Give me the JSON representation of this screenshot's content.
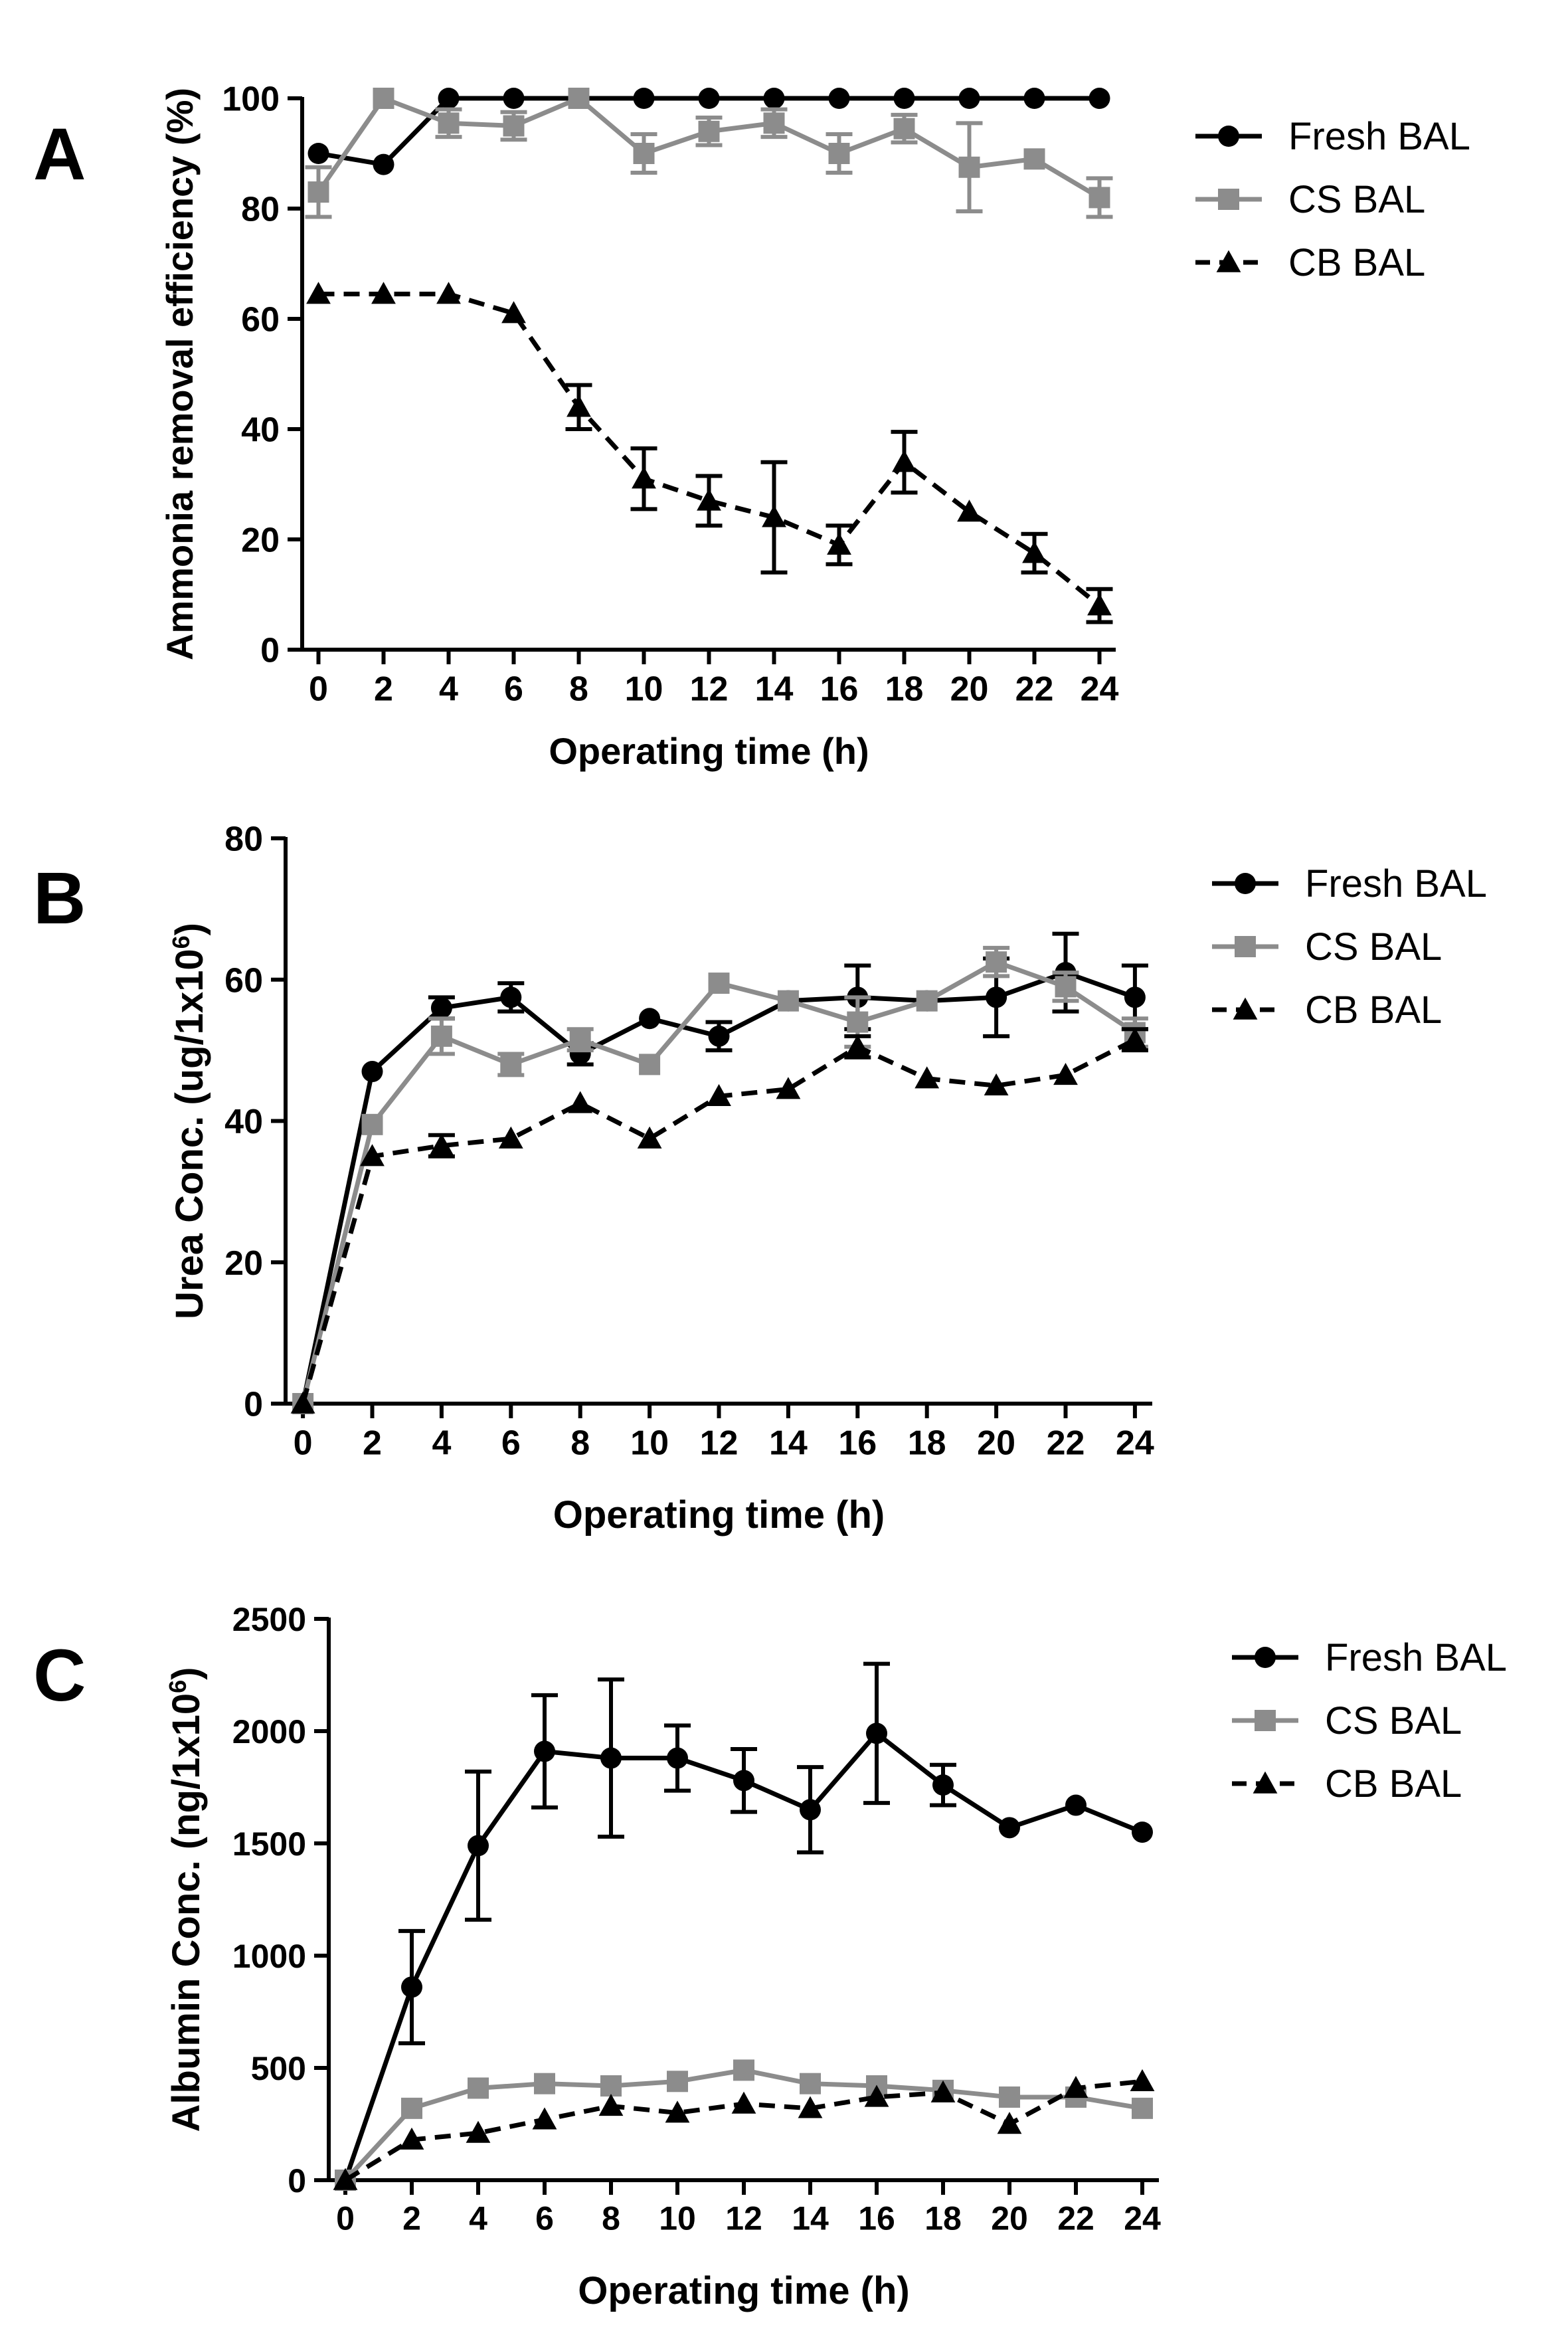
{
  "styles": {
    "Fresh BAL": {
      "color": "#000000",
      "marker": "circle",
      "dash": ""
    },
    "CS BAL": {
      "color": "#8c8c8c",
      "marker": "square",
      "dash": ""
    },
    "CB BAL": {
      "color": "#000000",
      "marker": "triangle",
      "dash": "24,14"
    }
  },
  "chart_data": [
    {
      "type": "line",
      "panel_label": "A",
      "xlabel": "Operating time (h)",
      "ylabel": "Ammonia removal efficiency (%)",
      "ylabel_sup": "",
      "ylabel_suffix": "",
      "x": [
        0,
        2,
        4,
        6,
        8,
        10,
        12,
        14,
        16,
        18,
        20,
        22,
        24
      ],
      "xlim": [
        -0.5,
        24.5
      ],
      "ylim": [
        0,
        100
      ],
      "yticks": [
        0,
        20,
        40,
        60,
        80,
        100
      ],
      "xticks": [
        0,
        2,
        4,
        6,
        8,
        10,
        12,
        14,
        16,
        18,
        20,
        22,
        24
      ],
      "legend_position": "right",
      "series": [
        {
          "name": "Fresh BAL",
          "values": [
            90,
            88,
            100,
            100,
            100,
            100,
            100,
            100,
            100,
            100,
            100,
            100,
            100
          ],
          "errors": [
            0,
            0,
            0,
            0,
            0,
            0,
            0,
            0,
            0,
            0,
            0,
            0,
            0
          ]
        },
        {
          "name": "CS BAL",
          "values": [
            83,
            100,
            95.5,
            95,
            100,
            90,
            94,
            95.5,
            90,
            94.5,
            87.5,
            89,
            82
          ],
          "errors": [
            4.5,
            0,
            2.5,
            2.5,
            0,
            3.5,
            2.5,
            2.5,
            3.5,
            2.5,
            8,
            0,
            3.5
          ]
        },
        {
          "name": "CB BAL",
          "values": [
            64.5,
            64.5,
            64.5,
            61,
            44,
            31,
            27,
            24,
            19,
            34,
            25,
            17.5,
            8
          ],
          "errors": [
            0,
            0,
            0,
            0,
            4,
            5.5,
            4.5,
            10,
            3.5,
            5.5,
            0,
            3.5,
            3
          ]
        }
      ]
    },
    {
      "type": "line",
      "panel_label": "B",
      "xlabel": "Operating time (h)",
      "ylabel": "Urea Conc. (ug/1x10",
      "ylabel_sup": "6",
      "ylabel_suffix": ")",
      "x": [
        0,
        2,
        4,
        6,
        8,
        10,
        12,
        14,
        16,
        18,
        20,
        22,
        24
      ],
      "xlim": [
        -0.5,
        24.5
      ],
      "ylim": [
        0,
        80
      ],
      "yticks": [
        0,
        20,
        40,
        60,
        80
      ],
      "xticks": [
        0,
        2,
        4,
        6,
        8,
        10,
        12,
        14,
        16,
        18,
        20,
        22,
        24
      ],
      "legend_position": "right",
      "series": [
        {
          "name": "Fresh BAL",
          "values": [
            0,
            47,
            56,
            57.5,
            49.5,
            54.5,
            52,
            57,
            57.5,
            57,
            57.5,
            61,
            57.5
          ],
          "errors": [
            0,
            0,
            1.5,
            2,
            1.5,
            0,
            2,
            0,
            4.5,
            0,
            5.5,
            5.5,
            4.5
          ]
        },
        {
          "name": "CS BAL",
          "values": [
            0,
            39.5,
            52,
            48,
            51.5,
            48,
            59.5,
            57,
            54,
            57,
            62.5,
            59,
            52.5
          ],
          "errors": [
            0,
            0,
            2.5,
            1.5,
            1.5,
            0,
            0,
            0,
            3.5,
            0,
            2,
            2,
            2
          ]
        },
        {
          "name": "CB BAL",
          "values": [
            0,
            35,
            36.5,
            37.5,
            42.5,
            37.5,
            43.5,
            44.5,
            50.5,
            46,
            45,
            46.5,
            51.5
          ],
          "errors": [
            0,
            0,
            1.5,
            0,
            0,
            0,
            0,
            0,
            1.5,
            0,
            0,
            0,
            1.5
          ]
        }
      ]
    },
    {
      "type": "line",
      "panel_label": "C",
      "xlabel": "Operating time (h)",
      "ylabel": "Albumin Conc. (ng/1x10",
      "ylabel_sup": "6",
      "ylabel_suffix": ")",
      "x": [
        0,
        2,
        4,
        6,
        8,
        10,
        12,
        14,
        16,
        18,
        20,
        22,
        24
      ],
      "xlim": [
        -0.5,
        24.5
      ],
      "ylim": [
        0,
        2500
      ],
      "yticks": [
        0,
        500,
        1000,
        1500,
        2000,
        2500
      ],
      "xticks": [
        0,
        2,
        4,
        6,
        8,
        10,
        12,
        14,
        16,
        18,
        20,
        22,
        24
      ],
      "legend_position": "right",
      "series": [
        {
          "name": "Fresh BAL",
          "values": [
            0,
            860,
            1490,
            1910,
            1880,
            1880,
            1780,
            1650,
            1990,
            1760,
            1570,
            1670,
            1550
          ],
          "errors": [
            0,
            250,
            330,
            250,
            350,
            145,
            140,
            190,
            310,
            90,
            0,
            0,
            0
          ]
        },
        {
          "name": "CS BAL",
          "values": [
            0,
            320,
            410,
            430,
            420,
            440,
            490,
            430,
            420,
            400,
            370,
            370,
            320
          ],
          "errors": [
            0,
            0,
            0,
            0,
            0,
            0,
            0,
            0,
            0,
            0,
            0,
            0,
            0
          ]
        },
        {
          "name": "CB BAL",
          "values": [
            0,
            180,
            210,
            270,
            330,
            300,
            340,
            320,
            370,
            390,
            250,
            410,
            440
          ],
          "errors": [
            0,
            0,
            0,
            0,
            0,
            0,
            0,
            0,
            0,
            0,
            0,
            0,
            0
          ]
        }
      ]
    }
  ]
}
